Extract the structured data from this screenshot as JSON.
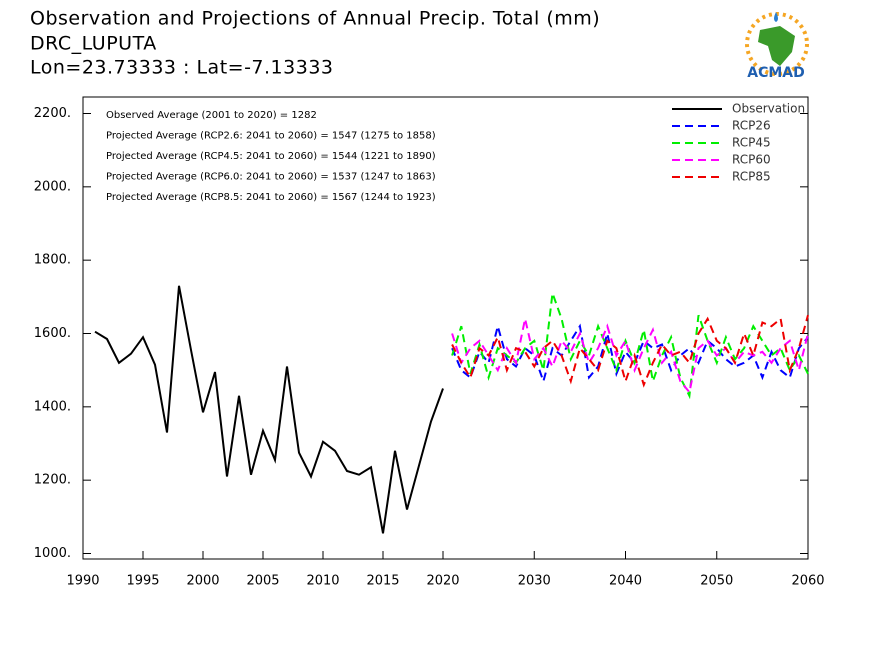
{
  "chart_data": {
    "type": "line",
    "title": "Observation and Projections of Annual Precip. Total (mm)",
    "subtitle": "DRC_LUPUTA",
    "location": "Lon=23.73333 : Lat=-7.13333",
    "logo": "ACMAD",
    "annotations": [
      "Observed Average (2001 to 2020) = 1282",
      "Projected Average (RCP2.6: 2041 to 2060) = 1547 (1275 to 1858)",
      "Projected Average (RCP4.5: 2041 to 2060) = 1544 (1221 to 1890)",
      "Projected Average (RCP6.0: 2041 to 2060) = 1537 (1247 to 1863)",
      "Projected Average (RCP8.5: 2041 to 2060) = 1567 (1244 to 1923)"
    ],
    "xlim": [
      1990,
      2060
    ],
    "xticks": [
      1990,
      1995,
      2000,
      2005,
      2010,
      2015,
      2020,
      2030,
      2040,
      2050,
      2060
    ],
    "ylim": [
      985,
      2245
    ],
    "yticks": [
      {
        "value": 1000,
        "label": "1000."
      },
      {
        "value": 1200,
        "label": "1200."
      },
      {
        "value": 1400,
        "label": "1400."
      },
      {
        "value": 1600,
        "label": "1600."
      },
      {
        "value": 1800,
        "label": "1800."
      },
      {
        "value": 2000,
        "label": "2000."
      },
      {
        "value": 2200,
        "label": "2200."
      }
    ],
    "legend": "top-right",
    "series": [
      {
        "name": "Observation",
        "color": "#000000",
        "dash": false,
        "x": [
          1991,
          1992,
          1993,
          1994,
          1995,
          1996,
          1997,
          1998,
          1999,
          2000,
          2001,
          2002,
          2003,
          2004,
          2005,
          2006,
          2007,
          2008,
          2009,
          2010,
          2011,
          2012,
          2013,
          2014,
          2015,
          2016,
          2017,
          2018,
          2019,
          2020
        ],
        "values": [
          1605,
          1585,
          1520,
          1545,
          1590,
          1515,
          1330,
          1730,
          1555,
          1385,
          1495,
          1210,
          1430,
          1215,
          1335,
          1255,
          1510,
          1275,
          1210,
          1305,
          1280,
          1225,
          1215,
          1235,
          1055,
          1280,
          1120,
          1240,
          1360,
          1450
        ]
      },
      {
        "name": "RCP26",
        "color": "#0000ff",
        "dash": true,
        "x": [
          2021,
          2022,
          2023,
          2024,
          2025,
          2026,
          2027,
          2028,
          2029,
          2030,
          2031,
          2032,
          2033,
          2034,
          2035,
          2036,
          2037,
          2038,
          2039,
          2040,
          2041,
          2042,
          2043,
          2044,
          2045,
          2046,
          2047,
          2048,
          2049,
          2050,
          2051,
          2052,
          2053,
          2054,
          2055,
          2056,
          2057,
          2058,
          2059,
          2060
        ],
        "values": [
          1560,
          1500,
          1480,
          1550,
          1520,
          1620,
          1530,
          1510,
          1560,
          1540,
          1470,
          1560,
          1540,
          1580,
          1620,
          1480,
          1510,
          1600,
          1490,
          1550,
          1520,
          1580,
          1560,
          1570,
          1500,
          1540,
          1560,
          1520,
          1580,
          1560,
          1530,
          1510,
          1520,
          1540,
          1480,
          1550,
          1500,
          1480,
          1560,
          1590
        ]
      },
      {
        "name": "RCP45",
        "color": "#00ee00",
        "dash": true,
        "x": [
          2021,
          2022,
          2023,
          2024,
          2025,
          2026,
          2027,
          2028,
          2029,
          2030,
          2031,
          2032,
          2033,
          2034,
          2035,
          2036,
          2037,
          2038,
          2039,
          2040,
          2041,
          2042,
          2043,
          2044,
          2045,
          2046,
          2047,
          2048,
          2049,
          2050,
          2051,
          2052,
          2053,
          2054,
          2055,
          2056,
          2057,
          2058,
          2059,
          2060
        ],
        "values": [
          1540,
          1620,
          1490,
          1570,
          1480,
          1560,
          1540,
          1520,
          1560,
          1580,
          1500,
          1710,
          1640,
          1530,
          1580,
          1540,
          1620,
          1560,
          1500,
          1580,
          1520,
          1610,
          1470,
          1540,
          1590,
          1480,
          1430,
          1650,
          1580,
          1520,
          1590,
          1530,
          1560,
          1620,
          1580,
          1540,
          1560,
          1500,
          1540,
          1490
        ]
      },
      {
        "name": "RCP60",
        "color": "#ff00ff",
        "dash": true,
        "x": [
          2021,
          2022,
          2023,
          2024,
          2025,
          2026,
          2027,
          2028,
          2029,
          2030,
          2031,
          2032,
          2033,
          2034,
          2035,
          2036,
          2037,
          2038,
          2039,
          2040,
          2041,
          2042,
          2043,
          2044,
          2045,
          2046,
          2047,
          2048,
          2049,
          2050,
          2051,
          2052,
          2053,
          2054,
          2055,
          2056,
          2057,
          2058,
          2059,
          2060
        ],
        "values": [
          1600,
          1520,
          1560,
          1580,
          1540,
          1500,
          1560,
          1520,
          1640,
          1530,
          1560,
          1510,
          1580,
          1550,
          1600,
          1520,
          1560,
          1620,
          1540,
          1580,
          1500,
          1560,
          1610,
          1520,
          1550,
          1470,
          1440,
          1560,
          1580,
          1540,
          1560,
          1520,
          1550,
          1540,
          1550,
          1520,
          1560,
          1580,
          1500,
          1600
        ]
      },
      {
        "name": "RCP85",
        "color": "#ee0000",
        "dash": true,
        "x": [
          2021,
          2022,
          2023,
          2024,
          2025,
          2026,
          2027,
          2028,
          2029,
          2030,
          2031,
          2032,
          2033,
          2034,
          2035,
          2036,
          2037,
          2038,
          2039,
          2040,
          2041,
          2042,
          2043,
          2044,
          2045,
          2046,
          2047,
          2048,
          2049,
          2050,
          2051,
          2052,
          2053,
          2054,
          2055,
          2056,
          2057,
          2058,
          2059,
          2060
        ],
        "values": [
          1570,
          1520,
          1480,
          1560,
          1540,
          1590,
          1500,
          1560,
          1550,
          1510,
          1560,
          1580,
          1540,
          1470,
          1560,
          1530,
          1500,
          1580,
          1560,
          1470,
          1540,
          1460,
          1520,
          1570,
          1540,
          1550,
          1520,
          1600,
          1640,
          1580,
          1560,
          1520,
          1600,
          1540,
          1630,
          1620,
          1640,
          1500,
          1560,
          1650
        ]
      }
    ]
  }
}
